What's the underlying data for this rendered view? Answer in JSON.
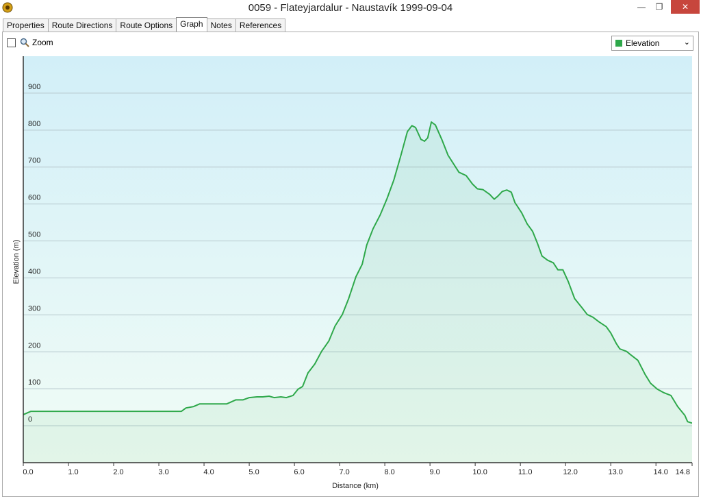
{
  "window": {
    "title": "0059 - Flateyjardalur - Naustavík 1999-09-04"
  },
  "tabs": [
    "Properties",
    "Route Directions",
    "Route Options",
    "Graph",
    "Notes",
    "References"
  ],
  "toolbar": {
    "zoom_label": "Zoom"
  },
  "chart_data": {
    "type": "line",
    "x_label": "Distance  (km)",
    "y_label": "Elevation (m)",
    "xlim": [
      0,
      14.8
    ],
    "ylim": [
      -100,
      1000
    ],
    "xticks": [
      {
        "value": 0,
        "label": "0.0"
      },
      {
        "value": 1,
        "label": "1.0"
      },
      {
        "value": 2,
        "label": "2.0"
      },
      {
        "value": 3,
        "label": "3.0"
      },
      {
        "value": 4,
        "label": "4.0"
      },
      {
        "value": 5,
        "label": "5.0"
      },
      {
        "value": 6,
        "label": "6.0"
      },
      {
        "value": 7,
        "label": "7.0"
      },
      {
        "value": 8,
        "label": "8.0"
      },
      {
        "value": 9,
        "label": "9.0"
      },
      {
        "value": 10,
        "label": "10.0"
      },
      {
        "value": 11,
        "label": "11.0"
      },
      {
        "value": 12,
        "label": "12.0"
      },
      {
        "value": 13,
        "label": "13.0"
      },
      {
        "value": 14,
        "label": "14.0"
      },
      14.8
    ],
    "yticks": [
      0,
      100,
      200,
      300,
      400,
      500,
      600,
      700,
      800,
      900
    ],
    "grid": true,
    "x": [
      0,
      0.17,
      0.3,
      3.5,
      3.6,
      3.77,
      3.9,
      4.5,
      4.7,
      4.86,
      5.0,
      5.17,
      5.3,
      5.44,
      5.55,
      5.7,
      5.82,
      5.97,
      6.08,
      6.18,
      6.3,
      6.45,
      6.6,
      6.76,
      6.9,
      7.06,
      7.2,
      7.36,
      7.5,
      7.6,
      7.74,
      7.9,
      8.05,
      8.2,
      8.35,
      8.5,
      8.6,
      8.68,
      8.8,
      8.88,
      8.95,
      9.03,
      9.12,
      9.26,
      9.4,
      9.64,
      9.8,
      9.94,
      10.05,
      10.17,
      10.32,
      10.42,
      10.5,
      10.6,
      10.7,
      10.8,
      10.88,
      11.03,
      11.15,
      11.27,
      11.38,
      11.48,
      11.6,
      11.73,
      11.83,
      11.94,
      12.06,
      12.2,
      12.36,
      12.48,
      12.6,
      12.74,
      12.9,
      13.0,
      13.12,
      13.2,
      13.35,
      13.45,
      13.6,
      13.76,
      13.88,
      14.03,
      14.18,
      14.33,
      14.48,
      14.64,
      14.7,
      14.8
    ],
    "series": [
      {
        "name": "Elevation",
        "color": "#2ea84a",
        "values": [
          30,
          39,
          39,
          39,
          48,
          52,
          59,
          59,
          70,
          70,
          76,
          78,
          78,
          80,
          76,
          78,
          76,
          82,
          99,
          106,
          143,
          167,
          201,
          229,
          270,
          301,
          344,
          403,
          437,
          489,
          533,
          571,
          615,
          665,
          729,
          796,
          812,
          807,
          775,
          770,
          779,
          822,
          814,
          775,
          732,
          686,
          677,
          654,
          641,
          639,
          626,
          613,
          621,
          634,
          638,
          632,
          604,
          576,
          546,
          526,
          493,
          459,
          448,
          441,
          422,
          422,
          390,
          344,
          320,
          301,
          294,
          281,
          268,
          251,
          223,
          208,
          201,
          191,
          177,
          139,
          115,
          99,
          89,
          82,
          52,
          28,
          11,
          7
        ]
      }
    ]
  }
}
